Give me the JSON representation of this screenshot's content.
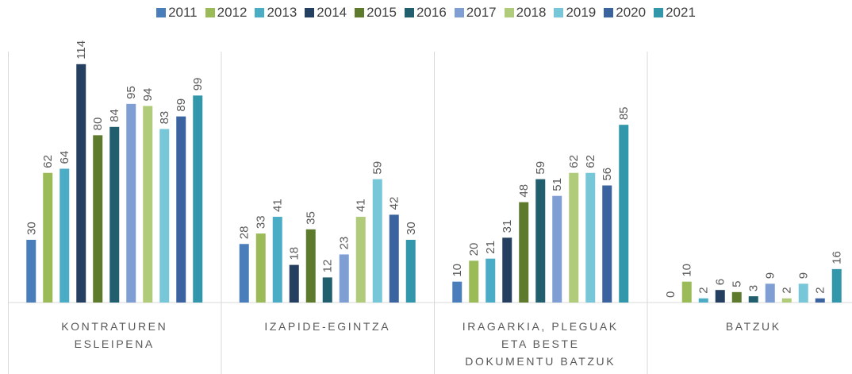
{
  "chart_data": {
    "type": "bar",
    "categories": [
      "KONTRATUREN ESLEIPENA",
      "IZAPIDE-EGINTZA",
      "IRAGARKIA, PLEGUAK ETA BESTE DOKUMENTU BATZUK",
      "BATZUK"
    ],
    "ylim": [
      0,
      120
    ],
    "legend": "top",
    "series": [
      {
        "name": "2011",
        "color": "#4a7ebb",
        "values": [
          30,
          28,
          10,
          0
        ]
      },
      {
        "name": "2012",
        "color": "#9bbb59",
        "values": [
          62,
          33,
          20,
          10
        ]
      },
      {
        "name": "2013",
        "color": "#4bacc6",
        "values": [
          64,
          41,
          21,
          2
        ]
      },
      {
        "name": "2014",
        "color": "#243f60",
        "values": [
          114,
          18,
          31,
          6
        ]
      },
      {
        "name": "2015",
        "color": "#5e7a2d",
        "values": [
          80,
          35,
          48,
          5
        ]
      },
      {
        "name": "2016",
        "color": "#215f6e",
        "values": [
          84,
          12,
          59,
          3
        ]
      },
      {
        "name": "2017",
        "color": "#7f9fd4",
        "values": [
          95,
          23,
          51,
          9
        ]
      },
      {
        "name": "2018",
        "color": "#b0cc7a",
        "values": [
          94,
          41,
          62,
          2
        ]
      },
      {
        "name": "2019",
        "color": "#78c7d9",
        "values": [
          83,
          59,
          62,
          9
        ]
      },
      {
        "name": "2020",
        "color": "#3a63a0",
        "values": [
          89,
          42,
          56,
          2
        ]
      },
      {
        "name": "2021",
        "color": "#3397ab",
        "values": [
          99,
          30,
          85,
          16
        ]
      }
    ]
  }
}
